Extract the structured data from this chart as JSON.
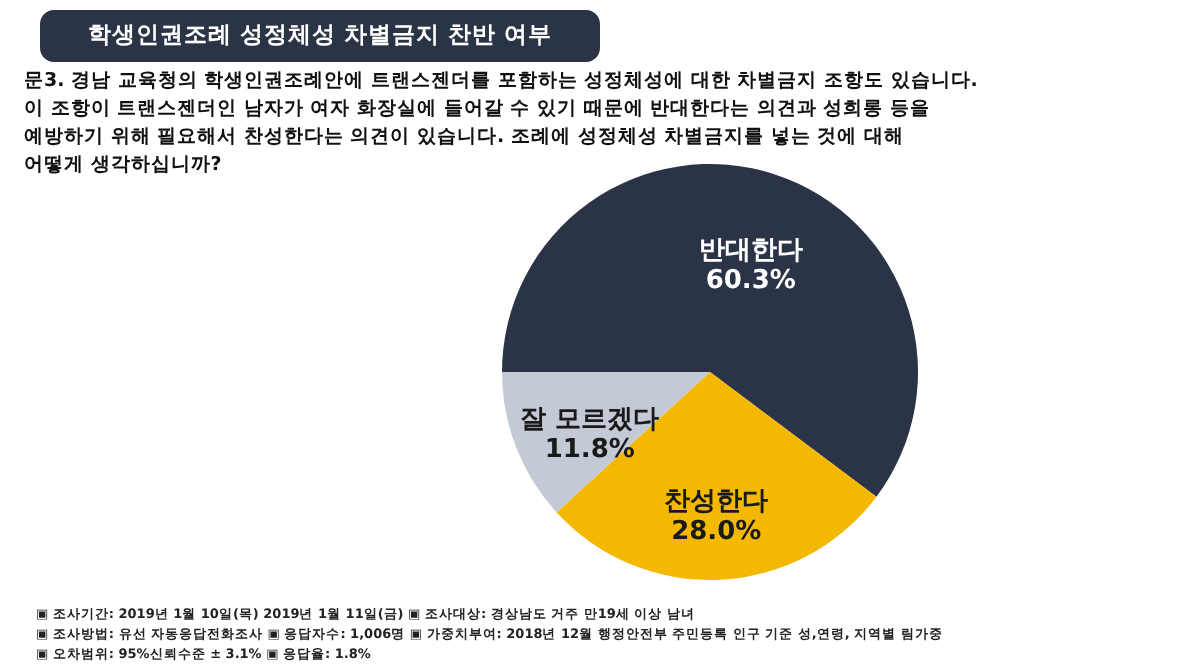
{
  "chart_data": {
    "type": "pie",
    "title": "학생인권조례 성정체성 차별금지 찬반 여부",
    "subtitle": "문3. 경남 교육청의 학생인권조례안에 트랜스젠더를 포함하는 성정체성에 대한 차별금지 조항도 있습니다.\n이 조항이 트랜스젠더인 남자가 여자 화장실에 들어갈 수 있기 때문에 반대한다는 의견과 성희롱 등을\n예방하기 위해 필요해서 찬성한다는 의견이 있습니다. 조례에 성정체성 차별금지를 넣는 것에 대해\n어떻게 생각하십니까?",
    "categories": [
      "반대한다",
      "찬성한다",
      "잘 모르겠다"
    ],
    "values": [
      60.3,
      28.0,
      11.8
    ],
    "colors": [
      "#2b3447",
      "#f5b800",
      "#c3cad6"
    ],
    "value_labels": [
      "60.3%",
      "28.0%",
      "11.8%"
    ],
    "annotations": [
      "▣ 조사기간: 2019년 1월 10일(목) 2019년 1월 11일(금) ▣ 조사대상: 경상남도 거주 만19세 이상 남녀",
      "▣ 조사방법: 유선 자동응답전화조사 ▣ 응답자수: 1,006명 ▣ 가중치부여: 2018년 12월 행정안전부 주민등록 인구 기준 성,연령, 지역별 림가중",
      "▣ 오차범위: 95%신뢰수준 ± 3.1% ▣ 응답율: 1.8%"
    ]
  }
}
